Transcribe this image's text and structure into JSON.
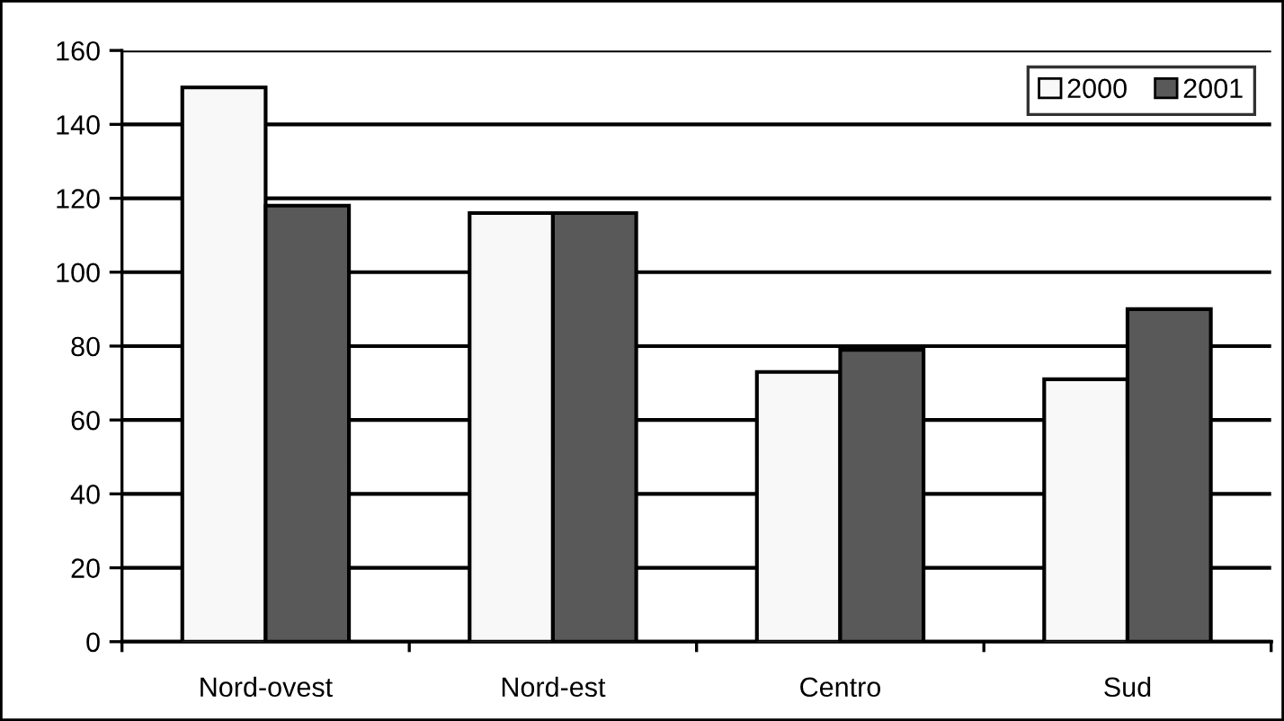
{
  "chart_data": {
    "type": "bar",
    "categories": [
      "Nord-ovest",
      "Nord-est",
      "Centro",
      "Sud"
    ],
    "series": [
      {
        "name": "2000",
        "color": "#f8f8f8",
        "values": [
          150,
          116,
          73,
          71
        ]
      },
      {
        "name": "2001",
        "color": "#595959",
        "values": [
          118,
          116,
          79,
          90
        ]
      }
    ],
    "ylim": [
      0,
      160
    ],
    "yticks": [
      0,
      20,
      40,
      60,
      80,
      100,
      120,
      140,
      160
    ],
    "grid": "y",
    "legend": "top right"
  }
}
